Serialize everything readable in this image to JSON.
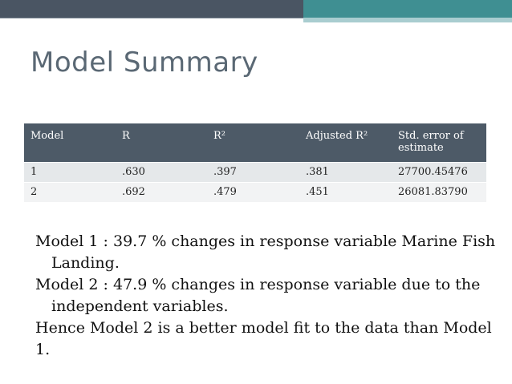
{
  "slide": {
    "title": "Model Summary"
  },
  "table": {
    "headers": [
      "Model",
      "R",
      "R²",
      "Adjusted R²",
      "Std. error of estimate"
    ],
    "rows": [
      [
        "1",
        ".630",
        ".397",
        ".381",
        "27700.45476"
      ],
      [
        "2",
        ".692",
        ".479",
        ".451",
        "26081.83790"
      ]
    ]
  },
  "body": {
    "lines": [
      "Model 1 : 39.7 % changes in response variable Marine Fish Landing.",
      "Model 2 : 47.9 % changes in response variable due to the independent variables.",
      "Hence Model 2 is a better model fit to the data than Model 1."
    ]
  },
  "colors": {
    "header_bg": "#4d5a67",
    "accent_teal": "#3f8f92",
    "title_color": "#5a6874"
  }
}
